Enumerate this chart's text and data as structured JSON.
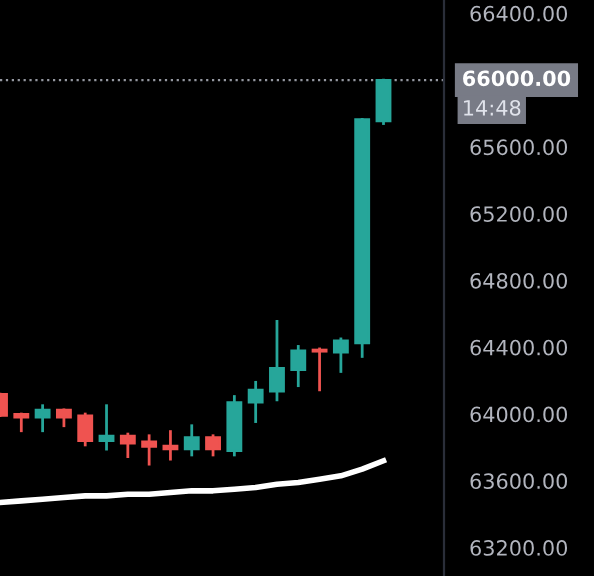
{
  "chart_data": {
    "type": "candlestick",
    "categories": [
      null,
      null,
      null,
      null,
      null,
      null,
      null,
      null,
      null,
      null,
      null,
      null,
      null,
      null,
      null,
      null,
      null,
      null,
      null
    ],
    "ohlc": [
      [
        64120,
        64120,
        63990,
        63990
      ],
      [
        64000,
        64000,
        63900,
        63980
      ],
      [
        63980,
        64050,
        63900,
        64025
      ],
      [
        64025,
        64025,
        63930,
        63980
      ],
      [
        63990,
        64000,
        63815,
        63840
      ],
      [
        63840,
        64050,
        63790,
        63870
      ],
      [
        63870,
        63880,
        63745,
        63825
      ],
      [
        63835,
        63870,
        63700,
        63805
      ],
      [
        63810,
        63895,
        63730,
        63790
      ],
      [
        63790,
        63930,
        63755,
        63860
      ],
      [
        63860,
        63870,
        63755,
        63790
      ],
      [
        63780,
        64105,
        63755,
        64070
      ],
      [
        64070,
        64190,
        63955,
        64145
      ],
      [
        64135,
        64555,
        64085,
        64275
      ],
      [
        64265,
        64405,
        64170,
        64380
      ],
      [
        64385,
        64390,
        64145,
        64375
      ],
      [
        64370,
        64450,
        64255,
        64440
      ],
      [
        64425,
        65765,
        64345,
        65765
      ],
      [
        65755,
        66000,
        65740,
        66000
      ]
    ],
    "series": [
      {
        "type": "line",
        "color": "#ffffff",
        "values": [
          63470,
          63480,
          63490,
          63500,
          63510,
          63510,
          63520,
          63520,
          63530,
          63540,
          63540,
          63550,
          63560,
          63580,
          63590,
          63610,
          63630,
          63670,
          63720
        ]
      }
    ],
    "colors": [
      "#ef5350",
      "#ef5350",
      "#26a69a",
      "#ef5350",
      "#ef5350",
      "#26a69a",
      "#ef5350",
      "#ef5350",
      "#ef5350",
      "#26a69a",
      "#ef5350",
      "#26a69a",
      "#26a69a",
      "#26a69a",
      "#26a69a",
      "#ef5350",
      "#26a69a",
      "#26a69a",
      "#26a69a"
    ],
    "ylim": [
      63030,
      66480
    ],
    "yticks": [
      {
        "value": 63200,
        "label": "63200.00"
      },
      {
        "value": 63600,
        "label": "63600.00"
      },
      {
        "value": 64000,
        "label": "64000.00"
      },
      {
        "value": 64400,
        "label": "64400.00"
      },
      {
        "value": 64800,
        "label": "64800.00"
      },
      {
        "value": 65200,
        "label": "65200.00"
      },
      {
        "value": 65600,
        "label": "65600.00"
      },
      {
        "value": 66400,
        "label": "66400.00"
      }
    ],
    "ref_lines": [
      {
        "axis": "y",
        "value": 66000,
        "label": "66000.00",
        "color": "#9598a1",
        "line_style": "dotted"
      }
    ],
    "annotations": [
      "14:48"
    ],
    "grid": false,
    "legend": false
  }
}
